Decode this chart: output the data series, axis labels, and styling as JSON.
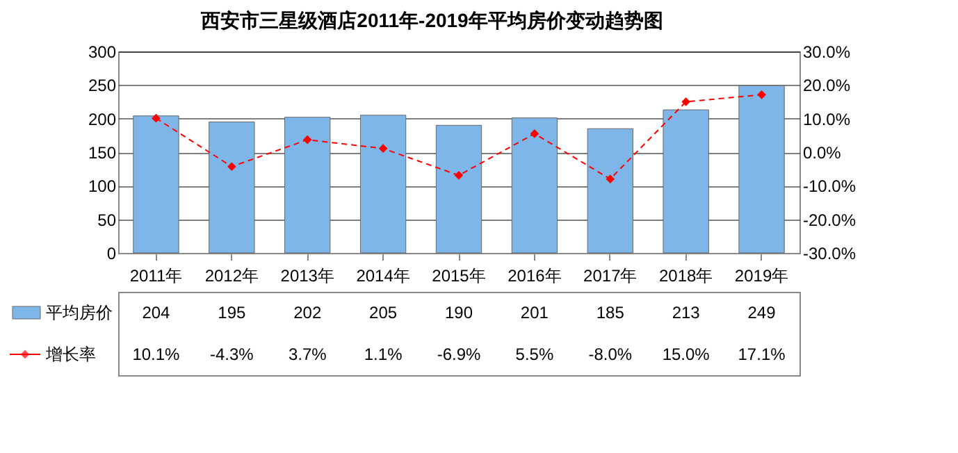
{
  "chart_data": {
    "type": "bar",
    "title": "西安市三星级酒店2011年-2019年平均房价变动趋势图",
    "categories": [
      "2011年",
      "2012年",
      "2013年",
      "2014年",
      "2015年",
      "2016年",
      "2017年",
      "2018年",
      "2019年"
    ],
    "series": [
      {
        "name": "平均房价",
        "color": "#7eb6ea",
        "values": [
          204,
          195,
          202,
          205,
          190,
          201,
          185,
          213,
          249
        ],
        "value_labels": [
          "204",
          "195",
          "202",
          "205",
          "190",
          "201",
          "185",
          "213",
          "249"
        ]
      },
      {
        "name": "增长率",
        "type": "line",
        "axis": "y2",
        "color": "#ff0000",
        "values": [
          10.1,
          -4.3,
          3.7,
          1.1,
          -6.9,
          5.5,
          -8.0,
          15.0,
          17.1
        ],
        "value_labels": [
          "10.1%",
          "-4.3%",
          "3.7%",
          "1.1%",
          "-6.9%",
          "5.5%",
          "-8.0%",
          "15.0%",
          "17.1%"
        ]
      }
    ],
    "ylim": [
      0,
      300
    ],
    "yticks": [
      0,
      50,
      100,
      150,
      200,
      250,
      300
    ],
    "y2lim": [
      -30,
      30
    ],
    "y2ticks": [
      {
        "value": -30,
        "label": "-30.0%"
      },
      {
        "value": -20,
        "label": "-20.0%"
      },
      {
        "value": -10,
        "label": "-10.0%"
      },
      {
        "value": 0,
        "label": "0.0%"
      },
      {
        "value": 10,
        "label": "10.0%"
      },
      {
        "value": 20,
        "label": "20.0%"
      },
      {
        "value": 30,
        "label": "30.0%"
      }
    ],
    "grid": "y",
    "legend": "bottom",
    "marker": "diamond",
    "line_style": "dashed"
  }
}
